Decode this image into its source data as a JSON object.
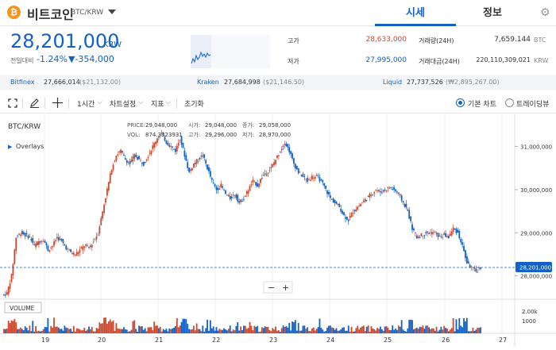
{
  "header": {
    "coin_icon": "bitcoin-icon",
    "coin_name": "비트코인",
    "pair": "BTC/KRW",
    "tabs": [
      {
        "label": "시세",
        "active": true
      },
      {
        "label": "정보",
        "active": false
      }
    ],
    "settings_icon": "gear-icon"
  },
  "price": {
    "current": "28,201,000",
    "unit": "KRW",
    "change_label": "전일대비",
    "change_pct": "-1.24%",
    "change_amt": "▼-354,000",
    "color": "#1261c4"
  },
  "stats": {
    "high_label": "고가",
    "high": "28,633,000",
    "low_label": "저가",
    "low": "27,995,000",
    "vol_label": "거래량(24H)",
    "vol": "7,659.144",
    "vol_unit": "BTC",
    "amount_label": "거래대금(24H)",
    "amount": "220,110,309,021",
    "amount_unit": "KRW"
  },
  "exchanges": [
    {
      "name": "Bitfinex",
      "value": "27,666,014",
      "sub": "($21,132.00)"
    },
    {
      "name": "Kraken",
      "value": "27,684,998",
      "sub": "($21,146.50)"
    },
    {
      "name": "Liquid",
      "value": "27,737,526",
      "sub": "(₩2,895,267.00)"
    }
  ],
  "toolbar": {
    "fullscreen_icon": "fullscreen-icon",
    "draw_icon": "pencil-icon",
    "crosshair_icon": "crosshair-icon",
    "interval": "1시간",
    "chart_settings": "차트설정",
    "indicators": "지표",
    "reset": "초기화",
    "basic_chart": "기본 차트",
    "tradingview": "트레이딩뷰"
  },
  "chart": {
    "symbol": "BTC/KRW",
    "overlays": "Overlays",
    "ohlc": {
      "price_label": "PRICE:",
      "price": "29,048,000",
      "vol_label": "VOL:",
      "vol": "874.3323931",
      "open_label": "시가:",
      "open": "29,048,000",
      "high_label": "고가:",
      "high": "29,296,000",
      "close_label": "종가:",
      "close": "29,058,000",
      "low_label": "저가:",
      "low": "28,970,000"
    },
    "current_price_tag": "28,201,000",
    "volume_label": "VOLUME",
    "volume_axis": [
      "2.00k",
      "1000"
    ],
    "zoom_minus": "−",
    "zoom_plus": "+",
    "up_color": "#c84a31",
    "down_color": "#1261c4"
  },
  "chart_data": {
    "type": "candlestick",
    "y_ticks": [
      "31,000,000",
      "30,000,000",
      "29,000,000",
      "28,000,000"
    ],
    "x_ticks": [
      "19",
      "20",
      "21",
      "22",
      "23",
      "24",
      "25",
      "26",
      "27"
    ],
    "series": [
      {
        "values": [
          27600000,
          28000000,
          28900000,
          29000000,
          28950000,
          28900000,
          28700000,
          28800000,
          28850000,
          28600000,
          28700000,
          28900000,
          28800000,
          28650000,
          28550000,
          28500000,
          28600000,
          28700000,
          28650000,
          28800000,
          29000000,
          29500000,
          30000000,
          30500000,
          30800000,
          30900000,
          30700000,
          30600000,
          30800000,
          30700000,
          30600000,
          30800000,
          31000000,
          31200000,
          31300000,
          31100000,
          31000000,
          30900000,
          31200000,
          30800000,
          30400000,
          30600000,
          30700000,
          30800000,
          30500000,
          30200000,
          30000000,
          30100000,
          29900000,
          29800000,
          29900000,
          29700000,
          29800000,
          30000000,
          30200000,
          30100000,
          30300000,
          30400000,
          30500000,
          30700000,
          30900000,
          31100000,
          30900000,
          30600000,
          30400000,
          30300000,
          30200000,
          30300000,
          30300000,
          30200000,
          30000000,
          29800000,
          29700000,
          29600000,
          29400000,
          29300000,
          29500000,
          29600000,
          29700000,
          29800000,
          29900000,
          30000000,
          29950000,
          30000000,
          30050000,
          30000000,
          29900000,
          29700000,
          29500000,
          29100000,
          28900000,
          28950000,
          29000000,
          29000000,
          29000000,
          28900000,
          28950000,
          28900000,
          29100000,
          29000000,
          28700000,
          28300000,
          28200000,
          28100000,
          28201000
        ]
      }
    ]
  }
}
